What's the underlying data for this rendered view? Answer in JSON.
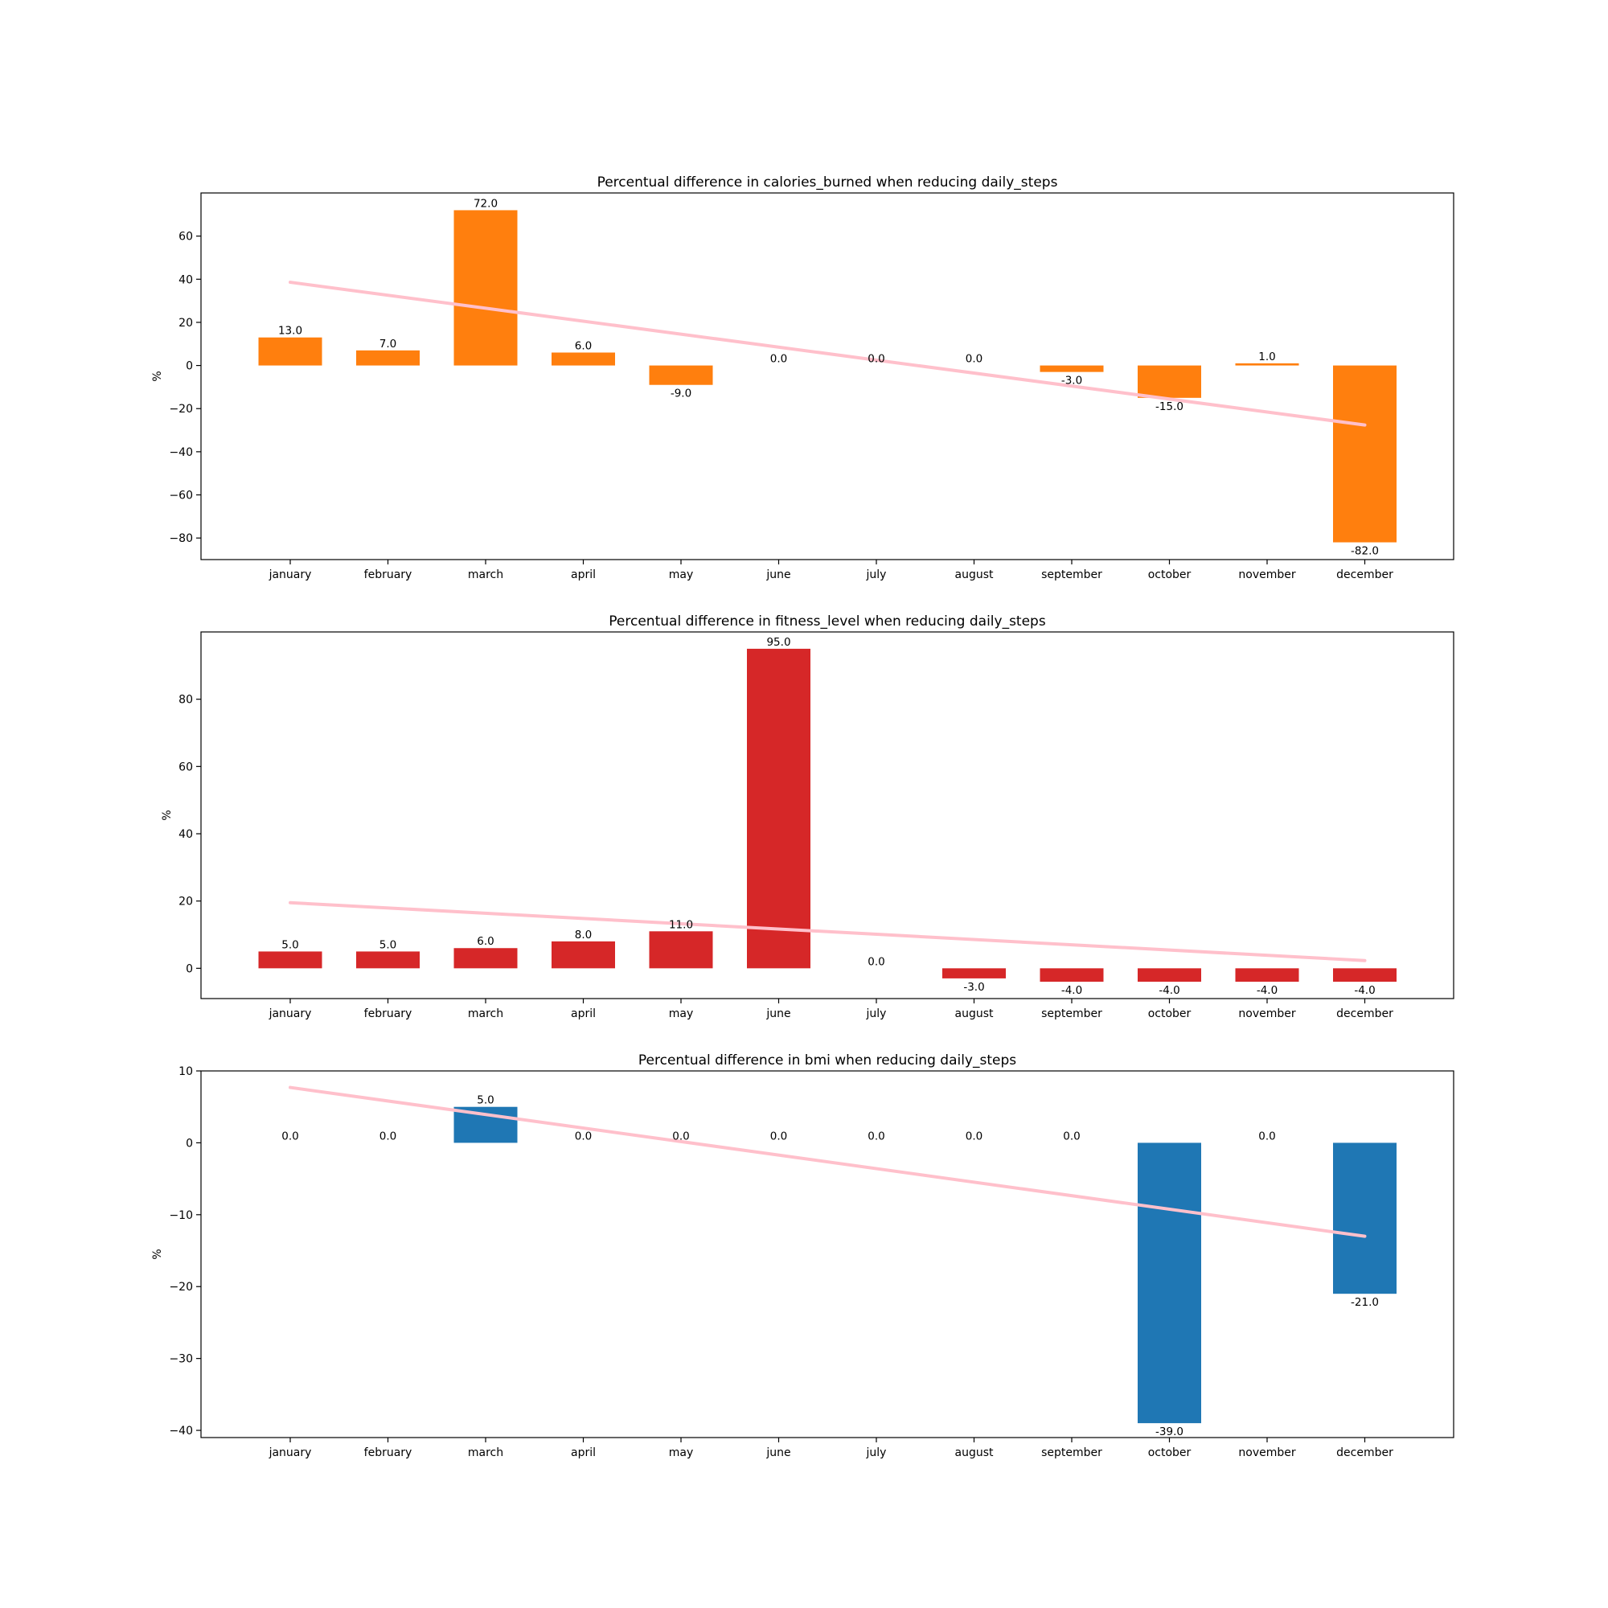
{
  "chart_data": [
    {
      "type": "bar",
      "title": "Percentual difference in calories_burned when reducing daily_steps",
      "xlabel": "",
      "ylabel": "%",
      "categories": [
        "january",
        "february",
        "march",
        "april",
        "may",
        "june",
        "july",
        "august",
        "september",
        "october",
        "november",
        "december"
      ],
      "values": [
        13.0,
        7.0,
        72.0,
        6.0,
        -9.0,
        0.0,
        0.0,
        0.0,
        -3.0,
        -15.0,
        1.0,
        -82.0
      ],
      "value_labels": [
        "13.0",
        "7.0",
        "72.0",
        "6.0",
        "-9.0",
        "0.0",
        "0.0",
        "0.0",
        "-3.0",
        "-15.0",
        "1.0",
        "-82.0"
      ],
      "ylim": [
        -90,
        80
      ],
      "yticks": [
        -80,
        -60,
        -40,
        -20,
        0,
        20,
        40,
        60
      ],
      "ytick_labels": [
        "−80",
        "−60",
        "−40",
        "−20",
        "0",
        "20",
        "40",
        "60"
      ],
      "color": "#ff7f0e",
      "trend_line": {
        "color": "#ffc0cb",
        "start": 38.6,
        "end": -27.6
      },
      "grid": false
    },
    {
      "type": "bar",
      "title": "Percentual difference in fitness_level when reducing daily_steps",
      "xlabel": "",
      "ylabel": "%",
      "categories": [
        "january",
        "february",
        "march",
        "april",
        "may",
        "june",
        "july",
        "august",
        "september",
        "october",
        "november",
        "december"
      ],
      "values": [
        5.0,
        5.0,
        6.0,
        8.0,
        11.0,
        95.0,
        0.0,
        -3.0,
        -4.0,
        -4.0,
        -4.0,
        -4.0
      ],
      "value_labels": [
        "5.0",
        "5.0",
        "6.0",
        "8.0",
        "11.0",
        "95.0",
        "0.0",
        "-3.0",
        "-4.0",
        "-4.0",
        "-4.0",
        "-4.0"
      ],
      "ylim": [
        -9,
        100
      ],
      "yticks": [
        0,
        20,
        40,
        60,
        80
      ],
      "ytick_labels": [
        "0",
        "20",
        "40",
        "60",
        "80"
      ],
      "color": "#d62728",
      "trend_line": {
        "color": "#ffc0cb",
        "start": 19.5,
        "end": 2.3
      },
      "grid": false
    },
    {
      "type": "bar",
      "title": "Percentual difference in bmi when reducing daily_steps",
      "xlabel": "",
      "ylabel": "%",
      "categories": [
        "january",
        "february",
        "march",
        "april",
        "may",
        "june",
        "july",
        "august",
        "september",
        "october",
        "november",
        "december"
      ],
      "values": [
        0.0,
        0.0,
        5.0,
        0.0,
        0.0,
        0.0,
        0.0,
        0.0,
        0.0,
        -39.0,
        0.0,
        -21.0
      ],
      "value_labels": [
        "0.0",
        "0.0",
        "5.0",
        "0.0",
        "0.0",
        "0.0",
        "0.0",
        "0.0",
        "0.0",
        "-39.0",
        "0.0",
        "-21.0"
      ],
      "ylim": [
        -41,
        10
      ],
      "yticks": [
        -40,
        -30,
        -20,
        -10,
        0,
        10
      ],
      "ytick_labels": [
        "−40",
        "−30",
        "−20",
        "−10",
        "0",
        "10"
      ],
      "color": "#1f77b4",
      "trend_line": {
        "color": "#ffc0cb",
        "start": 7.7,
        "end": -13.0
      },
      "grid": false
    }
  ]
}
